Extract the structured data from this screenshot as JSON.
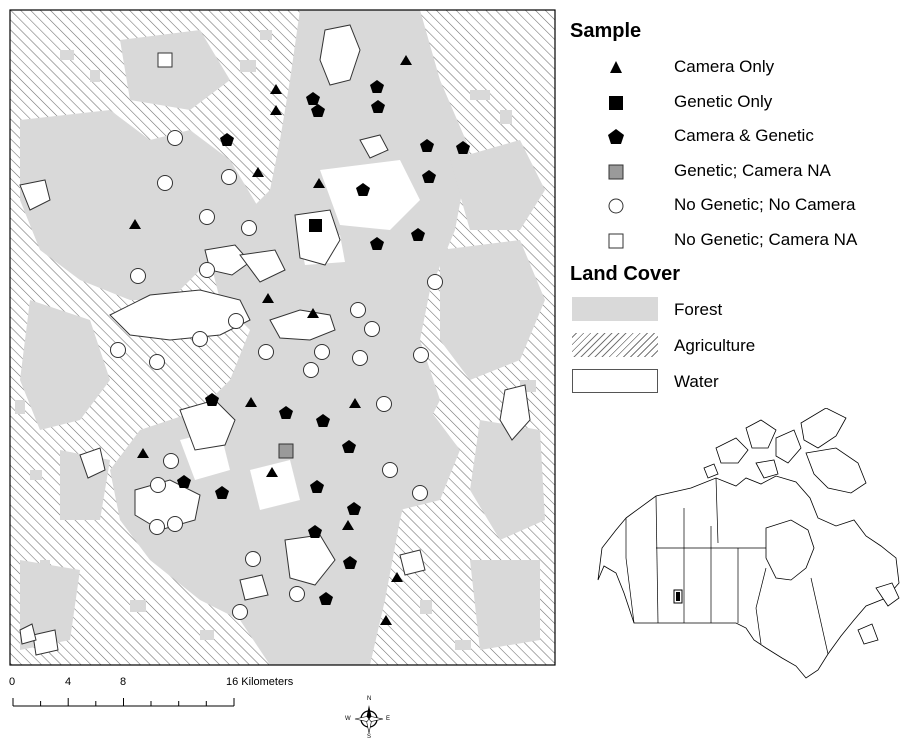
{
  "legend": {
    "sample_title": "Sample",
    "sample_items": [
      {
        "label": "Camera Only",
        "symbol": "triangle-icon"
      },
      {
        "label": "Genetic Only",
        "symbol": "filled-square-icon"
      },
      {
        "label": "Camera & Genetic",
        "symbol": "pentagon-icon"
      },
      {
        "label": "Genetic; Camera NA",
        "symbol": "gray-square-icon"
      },
      {
        "label": "No Genetic; No Camera",
        "symbol": "open-circle-icon"
      },
      {
        "label": "No Genetic; Camera NA",
        "symbol": "open-square-icon"
      }
    ],
    "landcover_title": "Land Cover",
    "landcover_items": [
      {
        "label": "Forest",
        "color": "#d9d9d9"
      },
      {
        "label": "Agriculture",
        "color": "#777777"
      },
      {
        "label": "Water",
        "color": "#ffffff"
      }
    ]
  },
  "scalebar": {
    "labels": [
      "0",
      "4",
      "8",
      "16 Kilometers"
    ],
    "ticks_km": [
      0,
      2,
      4,
      6,
      8,
      10,
      12,
      14,
      16
    ]
  },
  "compass": {
    "n": "N",
    "s": "S",
    "e": "E",
    "w": "W"
  },
  "sites": {
    "camera_only": 16,
    "genetic_only": 1,
    "camera_genetic": 24,
    "genetic_camera_na": 1,
    "no_genetic_no_camera": 36,
    "no_genetic_camera_na": 1
  },
  "colors": {
    "forest": "#d9d9d9",
    "agriculture_hatch": "#777777",
    "genetic_camera_na": "#9a9a9a",
    "symbol": "#000000"
  }
}
